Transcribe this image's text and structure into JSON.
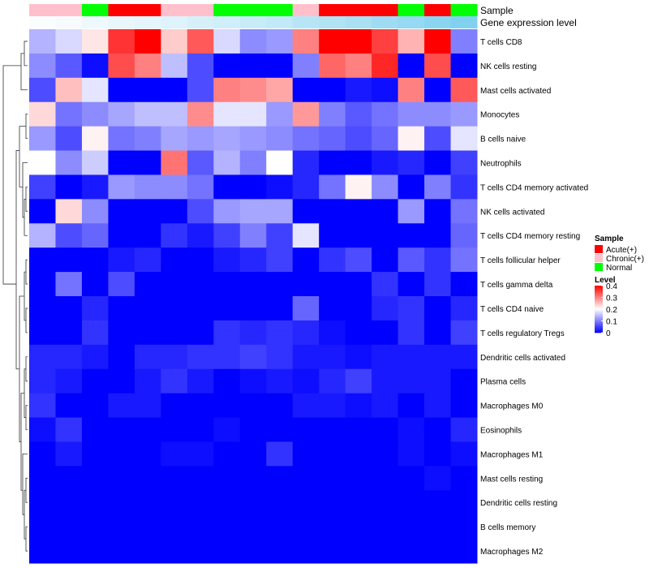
{
  "chart_data": {
    "type": "heatmap",
    "annotation_tracks": [
      "Sample",
      "Gene expression level"
    ],
    "columns": [
      {
        "sample": "Chronic(+)",
        "expression": 0.97
      },
      {
        "sample": "Chronic(+)",
        "expression": 0.95
      },
      {
        "sample": "Normal",
        "expression": 0.92
      },
      {
        "sample": "Acute(+)",
        "expression": 0.89
      },
      {
        "sample": "Acute(+)",
        "expression": 0.86
      },
      {
        "sample": "Chronic(+)",
        "expression": 0.83
      },
      {
        "sample": "Chronic(+)",
        "expression": 0.79
      },
      {
        "sample": "Normal",
        "expression": 0.76
      },
      {
        "sample": "Normal",
        "expression": 0.72
      },
      {
        "sample": "Normal",
        "expression": 0.69
      },
      {
        "sample": "Chronic(+)",
        "expression": 0.64
      },
      {
        "sample": "Acute(+)",
        "expression": 0.6
      },
      {
        "sample": "Acute(+)",
        "expression": 0.56
      },
      {
        "sample": "Acute(+)",
        "expression": 0.51
      },
      {
        "sample": "Normal",
        "expression": 0.46
      },
      {
        "sample": "Acute(+)",
        "expression": 0.41
      },
      {
        "sample": "Normal",
        "expression": 0.35
      }
    ],
    "rows": [
      "T cells CD8",
      "NK cells resting",
      "Mast cells activated",
      "Monocytes",
      "B cells naive",
      "Neutrophils",
      "T cells CD4 memory activated",
      "NK cells activated",
      "T cells CD4 memory resting",
      "T cells follicular helper",
      "T cells gamma delta",
      "T cells CD4 naive",
      "T cells regulatory  Tregs",
      "Dendritic cells activated",
      "Plasma cells",
      "Macrophages M0",
      "Eosinophils",
      "Macrophages M1",
      "Mast cells resting",
      "Dendritic cells resting",
      "B cells memory",
      "Macrophages M2"
    ],
    "values": [
      [
        0.14,
        0.17,
        0.22,
        0.36,
        0.4,
        0.24,
        0.33,
        0.17,
        0.11,
        0.12,
        0.3,
        0.4,
        0.4,
        0.35,
        0.26,
        0.4,
        0.1
      ],
      [
        0.11,
        0.07,
        0.01,
        0.34,
        0.3,
        0.15,
        0.06,
        0.0,
        0.0,
        0.0,
        0.1,
        0.32,
        0.3,
        0.37,
        0.0,
        0.34,
        0.0
      ],
      [
        0.06,
        0.25,
        0.18,
        0.0,
        0.0,
        0.0,
        0.06,
        0.3,
        0.29,
        0.27,
        0.0,
        0.0,
        0.02,
        0.01,
        0.3,
        0.0,
        0.33
      ],
      [
        0.23,
        0.09,
        0.11,
        0.13,
        0.15,
        0.15,
        0.29,
        0.18,
        0.18,
        0.12,
        0.28,
        0.1,
        0.07,
        0.09,
        0.11,
        0.11,
        0.12
      ],
      [
        0.12,
        0.06,
        0.21,
        0.09,
        0.1,
        0.13,
        0.12,
        0.13,
        0.12,
        0.11,
        0.09,
        0.08,
        0.06,
        0.08,
        0.21,
        0.06,
        0.18
      ],
      [
        0.2,
        0.11,
        0.16,
        0.0,
        0.0,
        0.31,
        0.07,
        0.14,
        0.1,
        0.2,
        0.03,
        0.0,
        0.0,
        0.02,
        0.03,
        0.0,
        0.05
      ],
      [
        0.05,
        0.0,
        0.02,
        0.12,
        0.11,
        0.11,
        0.09,
        0.0,
        0.0,
        0.01,
        0.03,
        0.09,
        0.21,
        0.11,
        0.0,
        0.1,
        0.04
      ],
      [
        0.0,
        0.23,
        0.11,
        0.0,
        0.0,
        0.0,
        0.06,
        0.12,
        0.13,
        0.13,
        0.0,
        0.0,
        0.0,
        0.0,
        0.12,
        0.0,
        0.09
      ],
      [
        0.14,
        0.06,
        0.08,
        0.0,
        0.0,
        0.04,
        0.02,
        0.05,
        0.1,
        0.05,
        0.18,
        0.0,
        0.0,
        0.0,
        0.0,
        0.0,
        0.08
      ],
      [
        0.0,
        0.0,
        0.0,
        0.02,
        0.03,
        0.0,
        0.0,
        0.02,
        0.03,
        0.05,
        0.0,
        0.04,
        0.06,
        0.0,
        0.07,
        0.04,
        0.09
      ],
      [
        0.0,
        0.09,
        0.0,
        0.06,
        0.0,
        0.0,
        0.0,
        0.0,
        0.0,
        0.0,
        0.0,
        0.0,
        0.0,
        0.04,
        0.0,
        0.04,
        0.0
      ],
      [
        0.0,
        0.0,
        0.03,
        0.0,
        0.0,
        0.0,
        0.0,
        0.0,
        0.0,
        0.0,
        0.08,
        0.0,
        0.0,
        0.03,
        0.04,
        0.0,
        0.03
      ],
      [
        0.0,
        0.0,
        0.04,
        0.0,
        0.0,
        0.0,
        0.0,
        0.04,
        0.03,
        0.04,
        0.03,
        0.01,
        0.0,
        0.0,
        0.04,
        0.0,
        0.05
      ],
      [
        0.03,
        0.03,
        0.02,
        0.0,
        0.03,
        0.03,
        0.04,
        0.04,
        0.05,
        0.04,
        0.02,
        0.02,
        0.01,
        0.02,
        0.02,
        0.02,
        0.02
      ],
      [
        0.03,
        0.02,
        0.0,
        0.0,
        0.02,
        0.04,
        0.02,
        0.0,
        0.01,
        0.02,
        0.01,
        0.03,
        0.05,
        0.02,
        0.02,
        0.02,
        0.0
      ],
      [
        0.04,
        0.0,
        0.0,
        0.02,
        0.02,
        0.0,
        0.0,
        0.0,
        0.0,
        0.0,
        0.02,
        0.02,
        0.01,
        0.02,
        0.0,
        0.02,
        0.0
      ],
      [
        0.01,
        0.04,
        0.0,
        0.0,
        0.0,
        0.0,
        0.0,
        0.01,
        0.0,
        0.0,
        0.0,
        0.0,
        0.0,
        0.0,
        0.01,
        0.0,
        0.03
      ],
      [
        0.0,
        0.02,
        0.0,
        0.0,
        0.0,
        0.01,
        0.01,
        0.0,
        0.0,
        0.04,
        0.0,
        0.0,
        0.0,
        0.0,
        0.01,
        0.0,
        0.01
      ],
      [
        0.0,
        0.0,
        0.0,
        0.0,
        0.0,
        0.0,
        0.0,
        0.0,
        0.0,
        0.0,
        0.0,
        0.0,
        0.0,
        0.0,
        0.0,
        0.01,
        0.0
      ],
      [
        0.0,
        0.0,
        0.0,
        0.0,
        0.0,
        0.0,
        0.0,
        0.0,
        0.0,
        0.0,
        0.0,
        0.0,
        0.0,
        0.0,
        0.0,
        0.0,
        0.0
      ],
      [
        0.0,
        0.0,
        0.0,
        0.0,
        0.0,
        0.0,
        0.0,
        0.0,
        0.0,
        0.0,
        0.0,
        0.0,
        0.0,
        0.0,
        0.0,
        0.0,
        0.0
      ],
      [
        0.0,
        0.0,
        0.0,
        0.0,
        0.0,
        0.0,
        0.0,
        0.0,
        0.0,
        0.0,
        0.0,
        0.0,
        0.0,
        0.0,
        0.0,
        0.0,
        0.0
      ]
    ],
    "color_scale": {
      "min": 0,
      "max": 0.4,
      "low": "#0000ff",
      "mid": "#ffffff",
      "high": "#ff0000",
      "mid_value": 0.2
    },
    "expression_scale": {
      "low": "#3bb8e7",
      "high": "#ffffff"
    },
    "legend": {
      "sample": {
        "title": "Sample",
        "items": [
          {
            "label": "Acute(+)",
            "color": "#ff0000"
          },
          {
            "label": "Chronic(+)",
            "color": "#ffc0cb"
          },
          {
            "label": "Normal",
            "color": "#00ff00"
          }
        ]
      },
      "level": {
        "title": "Level",
        "ticks": [
          0.4,
          0.3,
          0.2,
          0.1,
          0
        ],
        "tick_labels": [
          "0.4",
          "0.3",
          "0.2",
          "0.1",
          "0"
        ]
      },
      "placement": "right"
    },
    "dendrogram": "rows"
  }
}
